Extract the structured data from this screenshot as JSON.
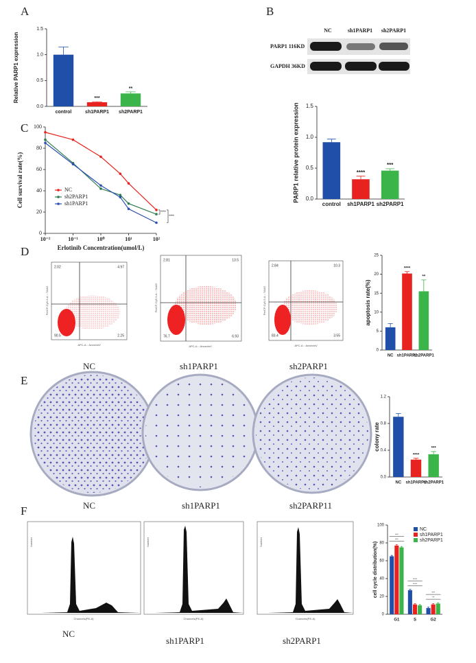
{
  "panel_labels": [
    "A",
    "B",
    "C",
    "D",
    "E",
    "F"
  ],
  "western_blot": {
    "lanes": [
      "NC",
      "sh1PARP1",
      "sh2PARP1"
    ],
    "rows": [
      "PARP1 116KD",
      "GAPDH 36KD"
    ]
  },
  "flow_cytometry": {
    "y_axis": "PerCP-Cy5-5-A :: 7AAD",
    "x_axis": "APC-A :: AnnexinV",
    "plots": [
      {
        "caption": "NC",
        "quadrants": [
          "2.02",
          "4.97",
          "90.5",
          "2.25"
        ]
      },
      {
        "caption": "sh1PARP1",
        "quadrants": [
          "2.81",
          "13.5",
          "76.7",
          "6.93"
        ]
      },
      {
        "caption": "sh2PARP1",
        "quadrants": [
          "2.84",
          "10.3",
          "83.4",
          "3.55"
        ]
      }
    ]
  },
  "colony_captions": [
    "NC",
    "sh1PARP1",
    "sh2PARP11"
  ],
  "cell_cycle_histograms": {
    "x_axis": "Channels(PE-A)",
    "y_axis": "Number",
    "captions": [
      "NC",
      "sh1PARP1",
      "sh2PARP1"
    ]
  },
  "chart_data": [
    {
      "type": "bar",
      "ylabel": "Relative PARP1 expression",
      "categories": [
        "control",
        "sh1PARP1",
        "sh2PARP1"
      ],
      "values": [
        1.0,
        0.08,
        0.25
      ],
      "errors": [
        0.15,
        0.01,
        0.03
      ],
      "significance": [
        null,
        "***",
        "**"
      ],
      "colors": [
        "#1f4fa8",
        "#e8231f",
        "#3bb54a"
      ],
      "ylim": [
        0,
        1.5
      ],
      "yticks": [
        {
          "value": 0,
          "label": "0.0"
        },
        {
          "value": 0.5,
          "label": "0.5"
        },
        {
          "value": 1,
          "label": "1.0"
        },
        {
          "value": 1.5,
          "label": "1.5"
        }
      ]
    },
    {
      "type": "bar",
      "ylabel": "PARP1 relative protein  expression",
      "categories": [
        "control",
        "sh1PARP1",
        "sh2PARP1"
      ],
      "values": [
        0.92,
        0.32,
        0.46
      ],
      "errors": [
        0.05,
        0.05,
        0.03
      ],
      "significance": [
        null,
        "****",
        "***"
      ],
      "colors": [
        "#1f4fa8",
        "#e8231f",
        "#3bb54a"
      ],
      "ylim": [
        0,
        1.5
      ],
      "yticks": [
        {
          "value": 0,
          "label": "0.0"
        },
        {
          "value": 0.5,
          "label": "0.5"
        },
        {
          "value": 1,
          "label": "1.0"
        },
        {
          "value": 1.5,
          "label": "1.5"
        }
      ]
    },
    {
      "type": "line",
      "ylabel": "Cell survival rate(%)",
      "xlabel": "Erlotinib Concentration(umol/L)",
      "xscale": "log",
      "x": [
        0.01,
        0.1,
        1,
        5,
        10,
        100
      ],
      "series": [
        {
          "name": "NC",
          "color": "#e8231f",
          "values": [
            95,
            88,
            72,
            56,
            47,
            22
          ]
        },
        {
          "name": "sh2PARP1",
          "color": "#2e7d4f",
          "values": [
            88,
            66,
            42,
            36,
            28,
            18
          ]
        },
        {
          "name": "sh1PARP1",
          "color": "#2a4fb5",
          "values": [
            85,
            65,
            45,
            34,
            23,
            10
          ]
        }
      ],
      "xlim": [
        0.01,
        100
      ],
      "ylim": [
        0,
        100
      ],
      "xticks": [
        {
          "value": 0.01,
          "label": "10⁻²"
        },
        {
          "value": 0.1,
          "label": "10⁻¹"
        },
        {
          "value": 1,
          "label": "10⁰"
        },
        {
          "value": 10,
          "label": "10¹"
        },
        {
          "value": 100,
          "label": "10²"
        }
      ],
      "yticks": [
        0,
        20,
        40,
        60,
        80,
        100
      ],
      "annotations": [
        "****",
        "****"
      ],
      "legend": "left"
    },
    {
      "type": "bar",
      "ylabel": "apoptosis rate(%)",
      "categories": [
        "NC",
        "sh1PARP1",
        "sh2PARP1"
      ],
      "values": [
        6,
        20.2,
        15.5
      ],
      "errors": [
        1,
        0.5,
        3
      ],
      "significance": [
        null,
        "****",
        "**"
      ],
      "colors": [
        "#1f4fa8",
        "#e8231f",
        "#3bb54a"
      ],
      "ylim": [
        0,
        25
      ],
      "yticks": [
        0,
        5,
        10,
        15,
        20,
        25
      ]
    },
    {
      "type": "bar",
      "ylabel": "colony rate",
      "categories": [
        "NC",
        "sh1PARP1",
        "sh2PARP1"
      ],
      "values": [
        0.9,
        0.26,
        0.34
      ],
      "errors": [
        0.05,
        0.02,
        0.04
      ],
      "significance": [
        null,
        "****",
        "***"
      ],
      "colors": [
        "#1f4fa8",
        "#e8231f",
        "#3bb54a"
      ],
      "ylim": [
        0,
        1.2
      ],
      "yticks": [
        {
          "value": 0,
          "label": "0.0"
        },
        {
          "value": 0.4,
          "label": "0.4"
        },
        {
          "value": 0.8,
          "label": "0.8"
        },
        {
          "value": 1.2,
          "label": "1.2"
        }
      ]
    },
    {
      "type": "bar",
      "ylabel": "cell cycle distribution(%)",
      "categories": [
        "G1",
        "S",
        "G2"
      ],
      "series": [
        {
          "name": "NC",
          "color": "#1f4fa8",
          "values": [
            65,
            27,
            7
          ],
          "errors": [
            1,
            1,
            1
          ]
        },
        {
          "name": "sh1PARP1",
          "color": "#e8231f",
          "values": [
            77,
            11,
            11
          ],
          "errors": [
            1,
            1,
            1
          ]
        },
        {
          "name": "sh2PARP1",
          "color": "#3bb54a",
          "values": [
            75,
            10,
            12
          ],
          "errors": [
            1,
            1,
            1
          ]
        }
      ],
      "significance": [
        [
          "***",
          "***"
        ],
        [
          "****",
          "****"
        ],
        [
          "**",
          "***"
        ]
      ],
      "ylim": [
        0,
        100
      ],
      "yticks": [
        0,
        20,
        40,
        60,
        80,
        100
      ],
      "legend": "upper right"
    }
  ]
}
